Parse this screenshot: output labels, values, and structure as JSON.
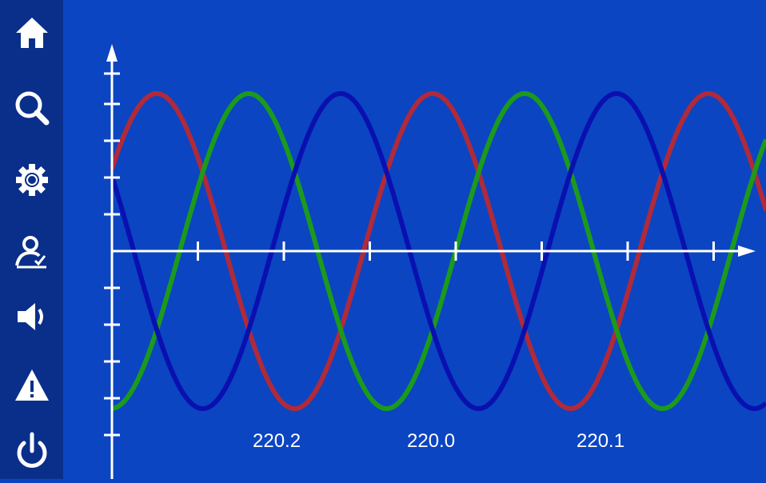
{
  "sidebar": {
    "items": [
      {
        "icon": "home-icon",
        "label": "Home"
      },
      {
        "icon": "search-icon",
        "label": "Search"
      },
      {
        "icon": "gear-icon",
        "label": "Settings"
      },
      {
        "icon": "user-check-icon",
        "label": "User"
      },
      {
        "icon": "speaker-icon",
        "label": "Sound"
      },
      {
        "icon": "warning-icon",
        "label": "Alarm"
      },
      {
        "icon": "power-icon",
        "label": "Power"
      }
    ]
  },
  "colors": {
    "background": "#0b45c2",
    "sidebar": "#0a2f8a",
    "axis": "#ffffff",
    "phase_red": "#b02a3a",
    "phase_green": "#1c9a1c",
    "phase_blue": "#0a10b0"
  },
  "readouts": {
    "red": "220.2",
    "green": "220.0",
    "blue": "220.1"
  },
  "chart_data": {
    "type": "line",
    "title": "",
    "xlabel": "",
    "ylabel": "",
    "grid": false,
    "waveform": "three-phase sine",
    "x_ticks": 8,
    "y_ticks_each_side": 4,
    "series": [
      {
        "color": "#b02a3a",
        "phase_deg": 0
      },
      {
        "color": "#1c9a1c",
        "phase_deg": 120
      },
      {
        "color": "#0a10b0",
        "phase_deg": 240
      }
    ]
  }
}
